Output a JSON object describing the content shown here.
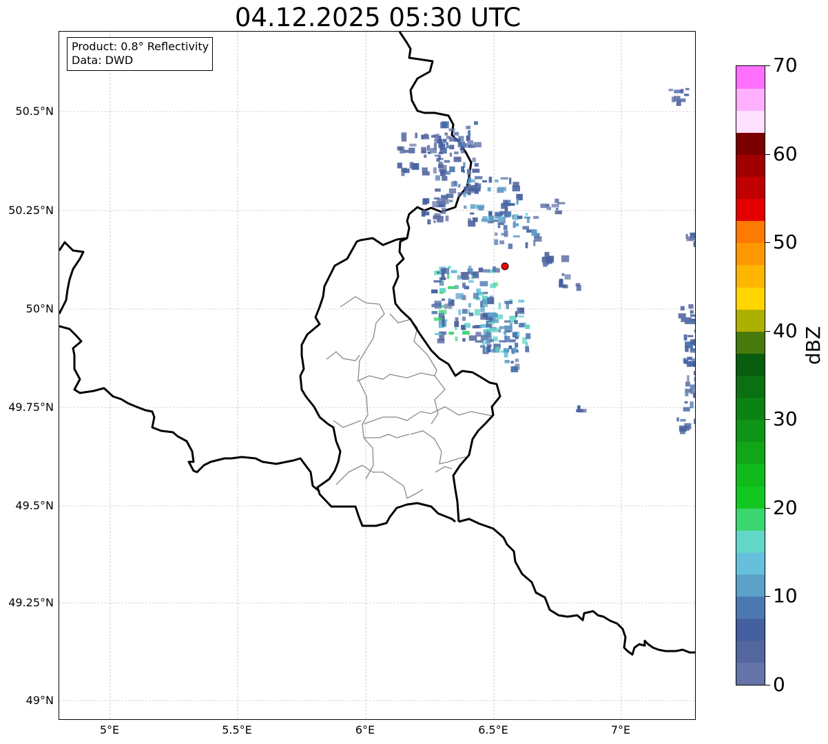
{
  "title": "04.12.2025 05:30 UTC",
  "info_box": {
    "product": "Product: 0.8° Reflectivity",
    "data": "Data: DWD"
  },
  "axes": {
    "lat_labels": [
      "49°N",
      "49.25°N",
      "49.5°N",
      "49.75°N",
      "50°N",
      "50.25°N",
      "50.5°N"
    ],
    "lon_labels": [
      "5°E",
      "5.5°E",
      "6°E",
      "6.5°E",
      "7°E"
    ],
    "lon_range": [
      4.8,
      7.3
    ],
    "lat_range": [
      48.95,
      50.7
    ],
    "gridlines": true
  },
  "colorbar": {
    "unit": "dBZ",
    "tick_labels": [
      "0",
      "10",
      "20",
      "30",
      "40",
      "50",
      "60",
      "70"
    ],
    "min": 0,
    "max": 70,
    "step": 2.5,
    "colors": [
      "#6474a8",
      "#54669e",
      "#4460a0",
      "#4c78b0",
      "#5aa0c8",
      "#66c0dc",
      "#62d6c8",
      "#3cd670",
      "#12c820",
      "#10ba1a",
      "#10a618",
      "#0e9416",
      "#0c8214",
      "#0a7012",
      "#085e10",
      "#467a0c",
      "#aeb000",
      "#ffd600",
      "#ffb600",
      "#ff9800",
      "#ff7a00",
      "#e40000",
      "#c00000",
      "#a00000",
      "#7c0000",
      "#ffe0ff",
      "#ffb0ff",
      "#ff70ff"
    ]
  },
  "map": {
    "radar_site_color": "#ff0000",
    "border_color": "#000000",
    "district_color": "#888888",
    "grid_color": "#b0b0b0"
  }
}
